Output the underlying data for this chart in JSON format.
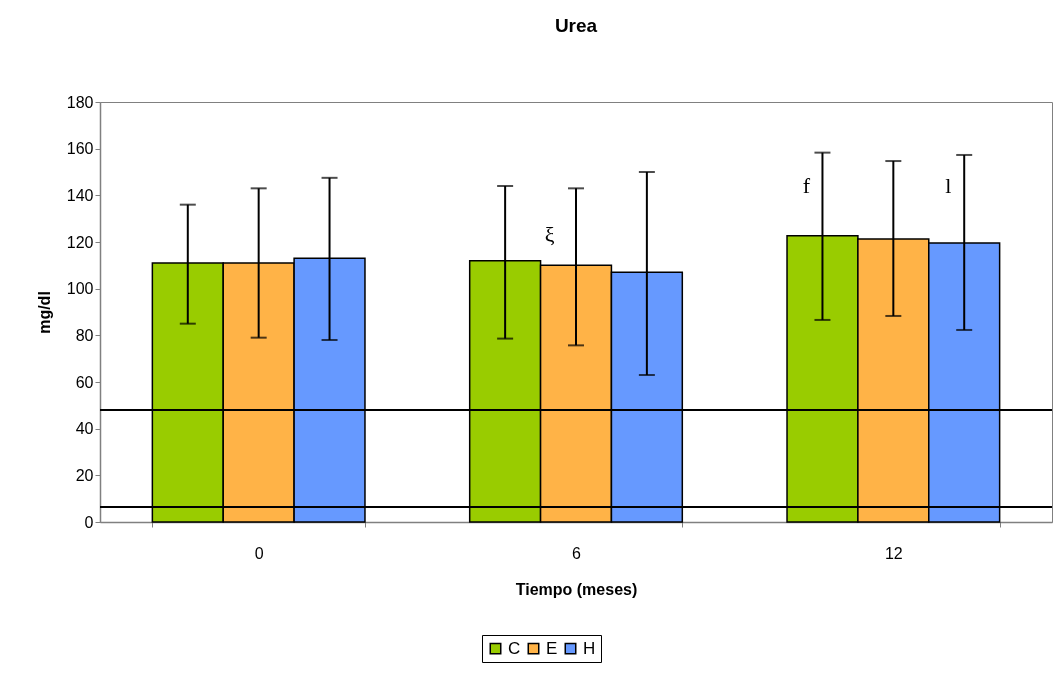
{
  "chart_data": {
    "type": "bar",
    "title": "Urea",
    "xlabel": "Tiempo (meses)",
    "ylabel": "mg/dl",
    "categories": [
      "0",
      "6",
      "12"
    ],
    "series": [
      {
        "name": "C",
        "color": "#99cc00",
        "values": [
          111,
          112,
          122.7
        ],
        "errors": [
          [
            85,
            136
          ],
          [
            78.6,
            144
          ],
          [
            86.6,
            158.3
          ]
        ]
      },
      {
        "name": "E",
        "color": "#ffb347",
        "values": [
          111,
          110,
          121.3
        ],
        "errors": [
          [
            79,
            143
          ],
          [
            75.7,
            143
          ],
          [
            88.3,
            154.7
          ]
        ]
      },
      {
        "name": "H",
        "color": "#6699ff",
        "values": [
          113,
          107,
          119.6
        ],
        "errors": [
          [
            78,
            147.5
          ],
          [
            63,
            150
          ],
          [
            82.3,
            157.3
          ]
        ]
      }
    ],
    "ylim": [
      0,
      180
    ],
    "yticks": [
      0,
      20,
      40,
      60,
      80,
      100,
      120,
      140,
      160,
      180
    ],
    "ref_lines": [
      {
        "axis": "y",
        "value": 48
      },
      {
        "axis": "y",
        "value": 6.4
      }
    ],
    "annotations": [
      {
        "text": "ξ",
        "x": "6",
        "y": 118
      },
      "f",
      "l"
    ],
    "grid": false,
    "legend": "bottom"
  }
}
